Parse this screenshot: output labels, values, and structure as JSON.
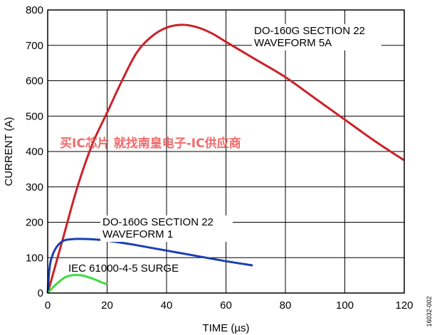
{
  "chart_data": {
    "type": "line",
    "xlabel": "TIME (µs)",
    "ylabel": "CURRENT (A)",
    "xlim": [
      0,
      120
    ],
    "ylim": [
      0,
      800
    ],
    "xticks": [
      0,
      20,
      40,
      60,
      80,
      100,
      120
    ],
    "yticks": [
      0,
      100,
      200,
      300,
      400,
      500,
      600,
      700,
      800
    ],
    "grid": true,
    "series": [
      {
        "name": "DO-160G SECTION 22 WAVEFORM 5A",
        "color": "#cc2127",
        "x": [
          0,
          5,
          10,
          15,
          20,
          25,
          30,
          35,
          40,
          45,
          50,
          55,
          60,
          70,
          80,
          90,
          100,
          110,
          120
        ],
        "y": [
          0,
          150,
          300,
          420,
          510,
          600,
          680,
          725,
          750,
          758,
          752,
          735,
          710,
          660,
          610,
          550,
          490,
          430,
          375
        ]
      },
      {
        "name": "DO-160G SECTION 22 WAVEFORM 1",
        "color": "#1a3fb3",
        "x": [
          0,
          0.5,
          1,
          2,
          3,
          4,
          5,
          6,
          8,
          10,
          15,
          20,
          25,
          30,
          40,
          50,
          60,
          69
        ],
        "y": [
          0,
          60,
          90,
          115,
          130,
          140,
          146,
          150,
          152,
          153,
          152,
          148,
          142,
          135,
          120,
          105,
          90,
          78
        ]
      },
      {
        "name": "IEC 61000-4-5 SURGE",
        "color": "#3fdc3f",
        "x": [
          0,
          2,
          4,
          6,
          8,
          10,
          12,
          14,
          16,
          18,
          20
        ],
        "y": [
          0,
          18,
          33,
          45,
          50,
          51,
          49,
          44,
          38,
          31,
          25
        ]
      }
    ],
    "annotations": [
      {
        "lines": [
          "DO-160G SECTION 22",
          "WAVEFORM 5A"
        ],
        "series": 0
      },
      {
        "lines": [
          "DO-160G SECTION 22",
          "WAVEFORM 1"
        ],
        "series": 1
      },
      {
        "lines": [
          "IEC 61000-4-5 SURGE"
        ],
        "series": 2
      }
    ]
  },
  "watermark": {
    "text": "买IC芯片 就找南皇电子-IC供应商",
    "color": "#f04f4f"
  },
  "figure_id": "16032-002"
}
